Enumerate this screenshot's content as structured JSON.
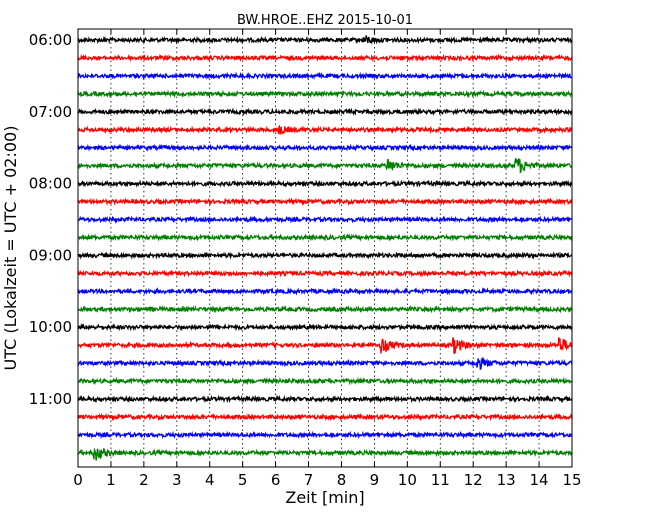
{
  "chart_data": {
    "type": "line",
    "title": "BW.HROE..EHZ 2015-10-01",
    "xlabel": "Zeit  [min]",
    "ylabel": "UTC (Lokalzeit = UTC + 02:00)",
    "xlim": [
      0,
      15
    ],
    "x_ticks": [
      "0",
      "1",
      "2",
      "3",
      "4",
      "5",
      "6",
      "7",
      "8",
      "9",
      "10",
      "11",
      "12",
      "13",
      "14",
      "15"
    ],
    "y_tick_labels": [
      "06:00",
      "07:00",
      "08:00",
      "09:00",
      "10:00",
      "11:00"
    ],
    "row_interval_minutes": 15,
    "row_count": 24,
    "row_start_times": [
      "06:00",
      "06:15",
      "06:30",
      "06:45",
      "07:00",
      "07:15",
      "07:30",
      "07:45",
      "08:00",
      "08:15",
      "08:30",
      "08:45",
      "09:00",
      "09:15",
      "09:30",
      "09:45",
      "10:00",
      "10:15",
      "10:30",
      "10:45",
      "11:00",
      "11:15",
      "11:30",
      "11:45"
    ],
    "row_colors": [
      "#000000",
      "#ff0000",
      "#0000ff",
      "#008000"
    ],
    "grid": "vertical dotted",
    "events": [
      {
        "row": 0,
        "minute": 8.7,
        "amp": 0.9
      },
      {
        "row": 5,
        "minute": 6.1,
        "amp": 0.9
      },
      {
        "row": 7,
        "minute": 9.4,
        "amp": 1.6
      },
      {
        "row": 7,
        "minute": 13.3,
        "amp": 2.3
      },
      {
        "row": 17,
        "minute": 9.2,
        "amp": 2.0
      },
      {
        "row": 17,
        "minute": 11.4,
        "amp": 1.9
      },
      {
        "row": 17,
        "minute": 14.6,
        "amp": 2.0
      },
      {
        "row": 18,
        "minute": 12.1,
        "amp": 1.7
      },
      {
        "row": 23,
        "minute": 0.5,
        "amp": 1.9
      }
    ]
  }
}
